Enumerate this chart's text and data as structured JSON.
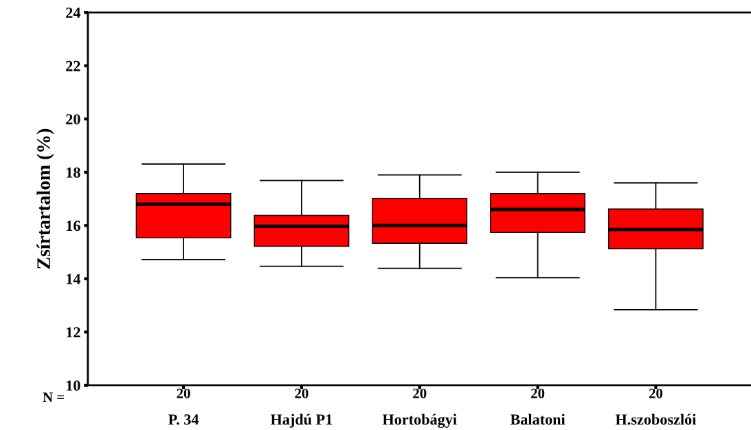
{
  "chart_data": {
    "type": "box",
    "ylabel": "Zsírtartalom (%)",
    "categories": [
      "P. 34",
      "Hajdú P1",
      "Hortobágyi",
      "Balatoni",
      "H.szoboszlói"
    ],
    "boxes": [
      {
        "low": 14.72,
        "q1": 15.54,
        "median": 16.8,
        "q3": 17.2,
        "high": 18.31
      },
      {
        "low": 14.47,
        "q1": 15.22,
        "median": 15.97,
        "q3": 16.38,
        "high": 17.69
      },
      {
        "low": 14.39,
        "q1": 15.33,
        "median": 16.0,
        "q3": 17.02,
        "high": 17.9
      },
      {
        "low": 14.04,
        "q1": 15.74,
        "median": 16.6,
        "q3": 17.2,
        "high": 18.0
      },
      {
        "low": 12.84,
        "q1": 15.13,
        "median": 15.85,
        "q3": 16.62,
        "high": 17.6
      }
    ],
    "color": "#ff0000",
    "ylim": [
      10,
      24
    ],
    "yticks": [
      10,
      12,
      14,
      16,
      18,
      20,
      22,
      24
    ],
    "annotations": [
      "N =",
      "20",
      "20",
      "20",
      "20",
      "20"
    ],
    "grid": false
  }
}
